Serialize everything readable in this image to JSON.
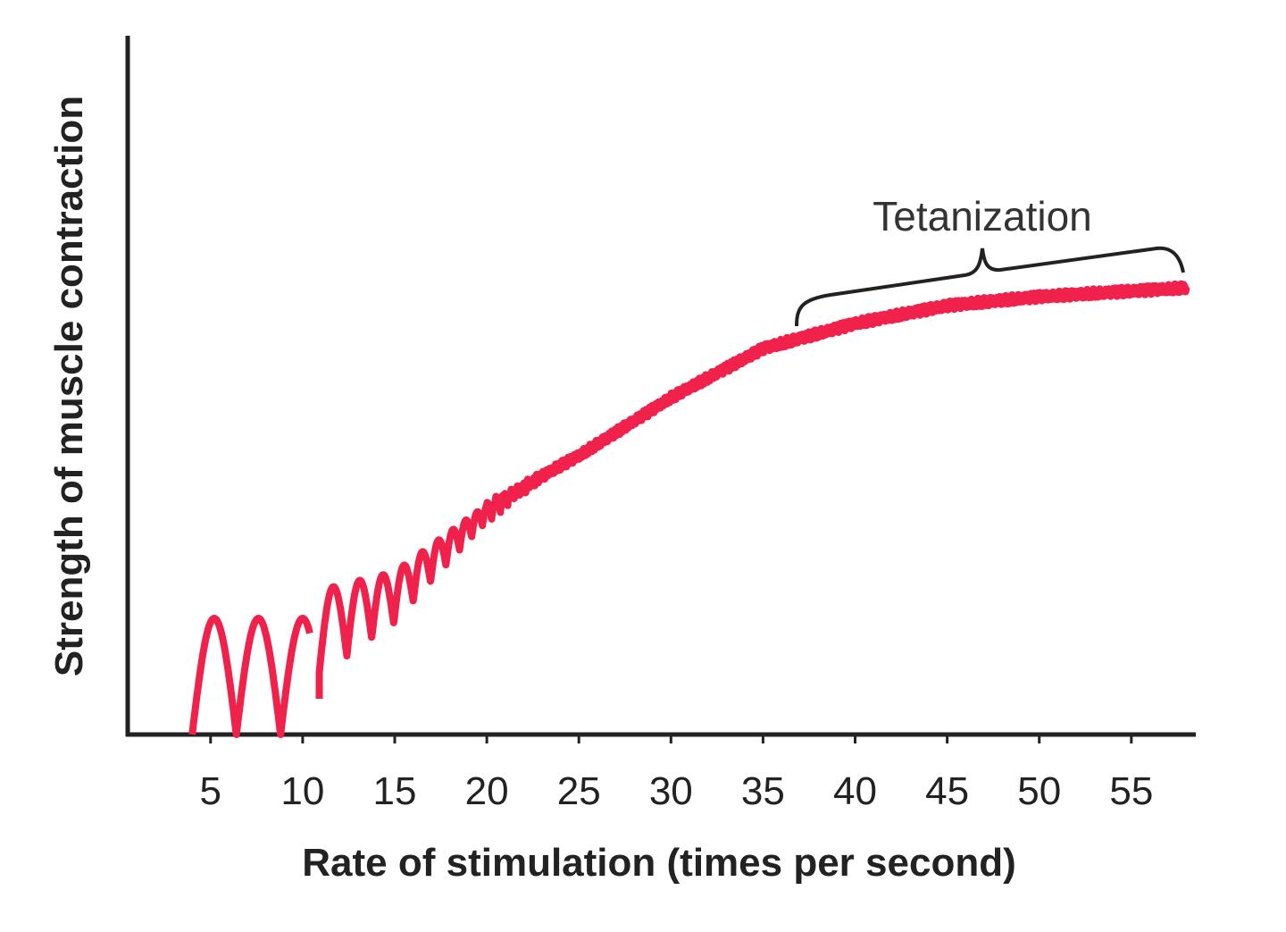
{
  "chart_data": {
    "type": "line",
    "x_label": "Rate of stimulation (times per second)",
    "y_label": "Strength of muscle contraction",
    "annotation": "Tetanization",
    "color": "#f0214a",
    "xlim": [
      0.5,
      58.5
    ],
    "xticks": [
      5,
      10,
      15,
      20,
      25,
      30,
      35,
      40,
      45,
      50,
      55
    ]
  }
}
